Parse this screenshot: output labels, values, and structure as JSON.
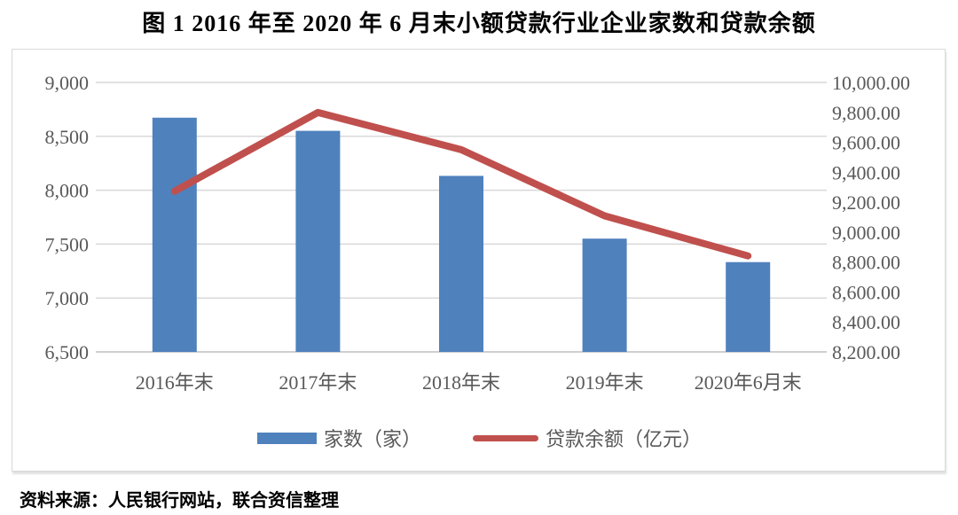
{
  "figure_title": "图 1  2016 年至 2020 年 6 月末小额贷款行业企业家数和贷款余额",
  "source_note": "资料来源：人民银行网站，联合资信整理",
  "colors": {
    "bar": "#4f81bd",
    "line": "#c0504d",
    "grid": "#d9d9d9",
    "axis_line": "#bfbfbf",
    "axis_text": "#595959"
  },
  "chart_data": {
    "type": "bar+line combo",
    "title": "图 1  2016 年至 2020 年 6 月末小额贷款行业企业家数和贷款余额",
    "categories": [
      "2016年末",
      "2017年末",
      "2018年末",
      "2019年末",
      "2020年6月末"
    ],
    "series": [
      {
        "name": "家数（家）",
        "type": "bar",
        "axis": "left",
        "values": [
          8673,
          8551,
          8133,
          7551,
          7333
        ]
      },
      {
        "name": "贷款余额（亿元）",
        "type": "line",
        "axis": "right",
        "values": [
          9273.2,
          9799.49,
          9550.44,
          9109.16,
          8841.42
        ]
      }
    ],
    "left_axis": {
      "min": 6500,
      "max": 9000,
      "step": 500,
      "tick_labels": [
        "9,000",
        "8,500",
        "8,000",
        "7,500",
        "7,000",
        "6,500"
      ]
    },
    "right_axis": {
      "min": 8200,
      "max": 10000,
      "step": 200,
      "tick_labels": [
        "10,000.00",
        "9,800.00",
        "9,600.00",
        "9,400.00",
        "9,200.00",
        "9,000.00",
        "8,800.00",
        "8,600.00",
        "8,400.00",
        "8,200.00"
      ]
    },
    "grid": true,
    "legend_position": "bottom"
  }
}
